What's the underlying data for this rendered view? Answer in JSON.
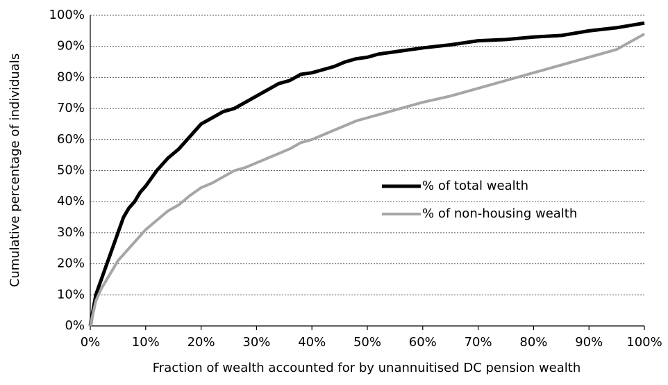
{
  "chart_data": {
    "type": "line",
    "x_label": "Fraction of wealth accounted for by unannuitised DC pension wealth",
    "y_label": "Cumulative percentage of individuals",
    "x": [
      0,
      1,
      2,
      3,
      4,
      5,
      6,
      7,
      8,
      9,
      10,
      12,
      14,
      16,
      18,
      20,
      22,
      24,
      26,
      28,
      30,
      32,
      34,
      36,
      38,
      40,
      42,
      44,
      46,
      48,
      50,
      52,
      54,
      56,
      58,
      60,
      65,
      70,
      75,
      80,
      85,
      90,
      95,
      100
    ],
    "series": [
      {
        "name": "% of total wealth",
        "color": "#000000",
        "values": [
          0,
          10,
          15,
          20,
          25,
          30,
          35,
          38,
          40,
          43,
          45,
          50,
          54,
          57,
          61,
          65,
          67,
          69,
          70,
          72,
          74,
          76,
          78,
          79,
          81,
          81.5,
          82.5,
          83.5,
          85,
          86,
          86.5,
          87.5,
          88,
          88.5,
          89,
          89.5,
          90.5,
          91.8,
          92.2,
          93,
          93.5,
          95,
          96,
          97.5
        ]
      },
      {
        "name": "% of non-housing wealth",
        "color": "#a6a6a6",
        "values": [
          0,
          8,
          12,
          15,
          18,
          21,
          23,
          25,
          27,
          29,
          31,
          34,
          37,
          39,
          42,
          44.5,
          46,
          48,
          50,
          51,
          52.5,
          54,
          55.5,
          57,
          59,
          60,
          61.5,
          63,
          64.5,
          66,
          67,
          68,
          69,
          70,
          71,
          72,
          74,
          76.5,
          79,
          81.5,
          84,
          86.5,
          89,
          94
        ]
      }
    ],
    "xlim": [
      0,
      100
    ],
    "xticks": [
      {
        "value": 0,
        "label": "0%"
      },
      {
        "value": 10,
        "label": "10%"
      },
      {
        "value": 20,
        "label": "20%"
      },
      {
        "value": 30,
        "label": "30%"
      },
      {
        "value": 40,
        "label": "40%"
      },
      {
        "value": 50,
        "label": "50%"
      },
      {
        "value": 60,
        "label": "60%"
      },
      {
        "value": 70,
        "label": "70%"
      },
      {
        "value": 80,
        "label": "80%"
      },
      {
        "value": 90,
        "label": "90%"
      },
      {
        "value": 100,
        "label": "100%"
      }
    ],
    "ylim": [
      0,
      100
    ],
    "yticks": [
      {
        "value": 0,
        "label": "0%"
      },
      {
        "value": 10,
        "label": "10%"
      },
      {
        "value": 20,
        "label": "20%"
      },
      {
        "value": 30,
        "label": "30%"
      },
      {
        "value": 40,
        "label": "40%"
      },
      {
        "value": 50,
        "label": "50%"
      },
      {
        "value": 60,
        "label": "60%"
      },
      {
        "value": 70,
        "label": "70%"
      },
      {
        "value": 80,
        "label": "80%"
      },
      {
        "value": 90,
        "label": "90%"
      },
      {
        "value": 100,
        "label": "100%"
      }
    ],
    "grid": true,
    "legend": "right"
  }
}
